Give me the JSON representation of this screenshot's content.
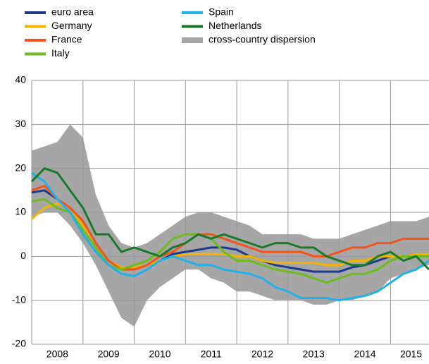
{
  "chart_data": {
    "type": "line",
    "x": [
      2008.0,
      2008.25,
      2008.5,
      2008.75,
      2009.0,
      2009.25,
      2009.5,
      2009.75,
      2010.0,
      2010.25,
      2010.5,
      2010.75,
      2011.0,
      2011.25,
      2011.5,
      2011.75,
      2012.0,
      2012.25,
      2012.5,
      2012.75,
      2013.0,
      2013.25,
      2013.5,
      2013.75,
      2014.0,
      2014.25,
      2014.5,
      2014.75,
      2015.0,
      2015.25,
      2015.5,
      2015.75
    ],
    "xlim": [
      2008,
      2015.75
    ],
    "xgrid": [
      2009,
      2010,
      2011,
      2012,
      2013,
      2014,
      2015
    ],
    "xticks": [
      {
        "value": 2008.5,
        "label": "2008"
      },
      {
        "value": 2009.5,
        "label": "2009"
      },
      {
        "value": 2010.5,
        "label": "2010"
      },
      {
        "value": 2011.5,
        "label": "2011"
      },
      {
        "value": 2012.5,
        "label": "2012"
      },
      {
        "value": 2013.5,
        "label": "2013"
      },
      {
        "value": 2014.5,
        "label": "2014"
      },
      {
        "value": 2015.4,
        "label": "2015"
      }
    ],
    "ylim": [
      -20,
      40
    ],
    "yticks": [
      -20,
      -10,
      0,
      10,
      20,
      30,
      40
    ],
    "grid": true,
    "band": {
      "name": "cross-country dispersion",
      "color": "#a6a6a6",
      "low": [
        9,
        10,
        10,
        7,
        3,
        -2,
        -8,
        -14,
        -16,
        -10,
        -7,
        -5,
        -3,
        -3,
        -5,
        -6,
        -8,
        -8,
        -9,
        -10,
        -10,
        -10,
        -11,
        -11,
        -10,
        -10,
        -9,
        -8,
        -5,
        -4,
        -3,
        -2
      ],
      "high": [
        24,
        25,
        26,
        30,
        27,
        14,
        7,
        3,
        2,
        3,
        5,
        7,
        9,
        10,
        10,
        9,
        8,
        7,
        5,
        5,
        5,
        5,
        4,
        4,
        4,
        5,
        6,
        7,
        8,
        8,
        8,
        9
      ]
    },
    "series": [
      {
        "name": "euro area",
        "color": "#1c3a8c",
        "values": [
          14.5,
          15,
          13,
          11,
          8,
          3,
          -1,
          -2.5,
          -3,
          -2,
          -1,
          0.5,
          1,
          1.5,
          2,
          2,
          1.5,
          0,
          -1,
          -2,
          -2.5,
          -3,
          -3.5,
          -3.5,
          -3.5,
          -2.5,
          -2,
          -1,
          0,
          0,
          0.5,
          0.5
        ]
      },
      {
        "name": "Germany",
        "color": "#f5b400",
        "values": [
          8.5,
          11,
          12,
          11,
          7,
          3,
          -1,
          -2.5,
          -2.5,
          -2,
          -1,
          0,
          0.5,
          0.5,
          0.5,
          0.5,
          0,
          0,
          -1,
          -1.5,
          -1.5,
          -1.5,
          -1.5,
          -2,
          -2,
          -1,
          -1,
          0,
          0,
          0,
          0.5,
          0.5
        ]
      },
      {
        "name": "France",
        "color": "#f2541b",
        "values": [
          15,
          16,
          13,
          11,
          8,
          3,
          -1,
          -3,
          -3,
          -2,
          0,
          1,
          3,
          5,
          5,
          4,
          3,
          2,
          1,
          1,
          1,
          1,
          0,
          0,
          1,
          2,
          2,
          3,
          3,
          4,
          4,
          4
        ]
      },
      {
        "name": "Italy",
        "color": "#6cbc1b",
        "values": [
          12.5,
          13,
          11,
          10,
          6,
          2,
          -2,
          -3,
          -2,
          -1,
          1,
          4,
          5,
          5,
          4,
          1,
          -1,
          -1,
          -2,
          -3,
          -3.5,
          -4,
          -5,
          -6,
          -5,
          -4,
          -4,
          -3,
          -1,
          0,
          0,
          0
        ]
      },
      {
        "name": "Spain",
        "color": "#21b1e8",
        "values": [
          19,
          17,
          13,
          10,
          5,
          1,
          -2,
          -4,
          -4.5,
          -3,
          -1,
          0,
          -1,
          -2,
          -2,
          -3,
          -3.5,
          -4,
          -5,
          -7,
          -8,
          -9.5,
          -9.5,
          -9.5,
          -10,
          -9.5,
          -9,
          -8,
          -6,
          -4,
          -3,
          -1
        ]
      },
      {
        "name": "Netherlands",
        "color": "#1a7a2a",
        "values": [
          17,
          20,
          19,
          15,
          11,
          5,
          5,
          1,
          2,
          1,
          0,
          2,
          3,
          5,
          4,
          5,
          4,
          3,
          2,
          3,
          3,
          2,
          2,
          0,
          -1,
          -2,
          -2,
          0,
          1,
          -1,
          0,
          -3
        ]
      }
    ]
  }
}
